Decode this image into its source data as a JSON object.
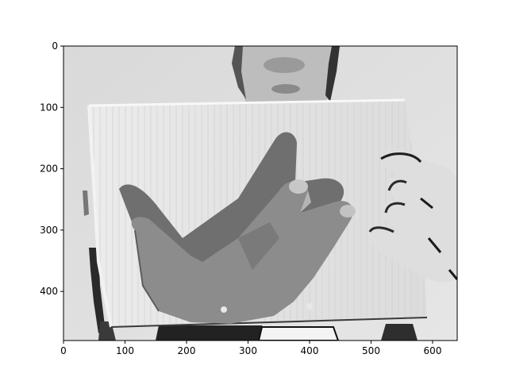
{
  "figure": {
    "image_extent": {
      "x": [
        0,
        640
      ],
      "y": [
        480,
        0
      ]
    },
    "x_ticks": [
      {
        "value": 0,
        "label": "0"
      },
      {
        "value": 100,
        "label": "100"
      },
      {
        "value": 200,
        "label": "200"
      },
      {
        "value": 300,
        "label": "300"
      },
      {
        "value": 400,
        "label": "400"
      },
      {
        "value": 500,
        "label": "500"
      },
      {
        "value": 600,
        "label": "600"
      }
    ],
    "y_ticks": [
      {
        "value": 0,
        "label": "0"
      },
      {
        "value": 100,
        "label": "100"
      },
      {
        "value": 200,
        "label": "200"
      },
      {
        "value": 300,
        "label": "300"
      },
      {
        "value": 400,
        "label": "400"
      }
    ],
    "colormap": "grayscale"
  }
}
